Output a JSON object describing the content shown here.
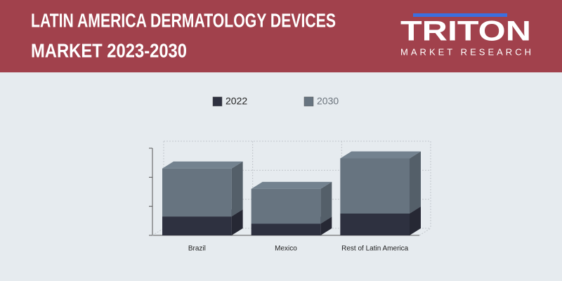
{
  "header": {
    "title": [
      "LATIN AMERICA DERMATOLOGY DEVICES",
      "MARKET 2023-2030"
    ],
    "logo": "TRITON",
    "tagline": "MARKET RESEARCH"
  },
  "chart_data": {
    "type": "bar",
    "stacked": true,
    "categories": [
      "Brazil",
      "Mexico",
      "Rest of Latin America"
    ],
    "series": [
      {
        "name": "2022",
        "color": "#2e3140",
        "values": [
          0.65,
          0.4,
          0.75
        ]
      },
      {
        "name": "2030",
        "color": "#677480",
        "values": [
          1.65,
          1.2,
          1.9
        ]
      }
    ],
    "ylim": [
      0,
      3
    ],
    "yticks": [
      0,
      1,
      2,
      3
    ],
    "grid": true,
    "legend": "top"
  }
}
